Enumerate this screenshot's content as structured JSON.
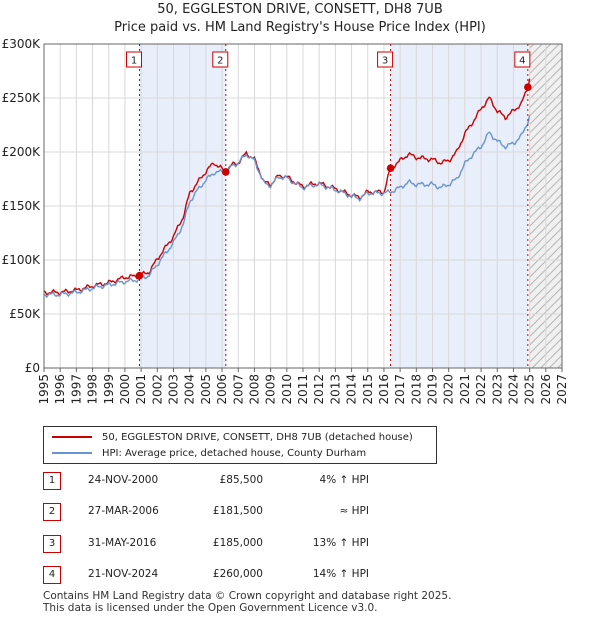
{
  "title": "50, EGGLESTON DRIVE, CONSETT, DH8 7UB",
  "subtitle": "Price paid vs. HM Land Registry's House Price Index (HPI)",
  "colors": {
    "property": "#cc0000",
    "hpi": "#6a94cf",
    "shade": "#e8eefa",
    "grid": "#d8d8d8"
  },
  "chart_data": {
    "type": "line",
    "xlim": [
      1995,
      2027
    ],
    "ylim": [
      0,
      300000
    ],
    "y_ticks": [
      0,
      50000,
      100000,
      150000,
      200000,
      250000,
      300000
    ],
    "y_tick_labels": [
      "£0",
      "£50K",
      "£100K",
      "£150K",
      "£200K",
      "£250K",
      "£300K"
    ],
    "x_ticks": [
      1995,
      1996,
      1997,
      1998,
      1999,
      2000,
      2001,
      2002,
      2003,
      2004,
      2005,
      2006,
      2007,
      2008,
      2009,
      2010,
      2011,
      2012,
      2013,
      2014,
      2015,
      2016,
      2017,
      2018,
      2019,
      2020,
      2021,
      2022,
      2023,
      2024,
      2025,
      2026,
      2027
    ],
    "x_tick_labels": [
      "1995",
      "1996",
      "1997",
      "1998",
      "1999",
      "2000",
      "2001",
      "2002",
      "2003",
      "2004",
      "2005",
      "2006",
      "2007",
      "2008",
      "2009",
      "2010",
      "2011",
      "2012",
      "2013",
      "2014",
      "2015",
      "2016",
      "2017",
      "2018",
      "2019",
      "2020",
      "2021",
      "2022",
      "2023",
      "2024",
      "2025",
      "2026",
      "2027"
    ],
    "shaded_ranges": [
      [
        2000.9,
        2006.23
      ],
      [
        2016.41,
        2024.89
      ]
    ],
    "future_hatch_from": 2025.0,
    "series": [
      {
        "name": "50, EGGLESTON DRIVE, CONSETT, DH8 7UB (detached house)",
        "color": "#cc0000",
        "x": [
          1995,
          1996,
          1997,
          1998,
          1999,
          2000,
          2000.9,
          2001.5,
          2002,
          2003,
          2003.6,
          2004,
          2004.5,
          2005,
          2005.5,
          2006.23,
          2006.6,
          2007,
          2007.5,
          2008,
          2008.6,
          2009,
          2009.5,
          2010,
          2010.5,
          2011,
          2011.5,
          2012,
          2013,
          2014,
          2014.5,
          2015,
          2016,
          2016.41,
          2017,
          2017.5,
          2018,
          2019,
          2019.5,
          2020,
          2020.5,
          2021,
          2021.5,
          2022,
          2022.5,
          2023,
          2023.5,
          2024,
          2024.5,
          2024.89,
          2025
        ],
        "y": [
          70000,
          70000,
          72000,
          76000,
          79000,
          84000,
          85500,
          89000,
          101000,
          122000,
          140000,
          162000,
          172000,
          182000,
          190000,
          181500,
          188000,
          190000,
          199000,
          193000,
          172000,
          170000,
          178000,
          177000,
          172000,
          168000,
          170000,
          171000,
          166000,
          160000,
          158000,
          163000,
          163000,
          185000,
          192000,
          198000,
          195000,
          193000,
          190000,
          192000,
          200000,
          217000,
          228000,
          240000,
          250000,
          238000,
          232000,
          238000,
          245000,
          260000,
          268000
        ]
      },
      {
        "name": "HPI: Average price, detached house, County Durham",
        "color": "#6a94cf",
        "x": [
          1995,
          1996,
          1997,
          1998,
          1999,
          2000,
          2000.9,
          2001.5,
          2002,
          2003,
          2003.6,
          2004,
          2004.5,
          2005,
          2005.5,
          2006.23,
          2006.6,
          2007,
          2007.5,
          2008,
          2008.6,
          2009,
          2009.5,
          2010,
          2010.5,
          2011,
          2011.5,
          2012,
          2013,
          2014,
          2014.5,
          2015,
          2016,
          2016.41,
          2017,
          2017.5,
          2018,
          2019,
          2019.5,
          2020,
          2020.5,
          2021,
          2021.5,
          2022,
          2022.5,
          2023,
          2023.5,
          2024,
          2024.5,
          2024.89,
          2025
        ],
        "y": [
          68000,
          68000,
          70000,
          74000,
          77000,
          80000,
          82000,
          86000,
          96000,
          116000,
          133000,
          154000,
          165000,
          174000,
          181000,
          182000,
          187000,
          190000,
          198000,
          192000,
          171000,
          169000,
          177000,
          176000,
          171000,
          167000,
          169000,
          170000,
          165000,
          159000,
          157000,
          162000,
          162000,
          163000,
          167000,
          172000,
          170000,
          170000,
          167000,
          170000,
          175000,
          189000,
          198000,
          205000,
          218000,
          210000,
          205000,
          208000,
          215000,
          228000,
          234000
        ]
      }
    ],
    "sales": [
      {
        "label": "1",
        "x": 2000.9,
        "y": 85500
      },
      {
        "label": "2",
        "x": 2006.23,
        "y": 181500
      },
      {
        "label": "3",
        "x": 2016.41,
        "y": 185000
      },
      {
        "label": "4",
        "x": 2024.89,
        "y": 260000
      }
    ]
  },
  "legend": {
    "property": "50, EGGLESTON DRIVE, CONSETT, DH8 7UB (detached house)",
    "hpi": "HPI: Average price, detached house, County Durham"
  },
  "transactions": [
    {
      "num": "1",
      "date": "24-NOV-2000",
      "price": "£85,500",
      "hpi": "4% ↑ HPI"
    },
    {
      "num": "2",
      "date": "27-MAR-2006",
      "price": "£181,500",
      "hpi": "≈ HPI"
    },
    {
      "num": "3",
      "date": "31-MAY-2016",
      "price": "£185,000",
      "hpi": "13% ↑ HPI"
    },
    {
      "num": "4",
      "date": "21-NOV-2024",
      "price": "£260,000",
      "hpi": "14% ↑ HPI"
    }
  ],
  "footer": {
    "line1": "Contains HM Land Registry data © Crown copyright and database right 2025.",
    "line2": "This data is licensed under the Open Government Licence v3.0."
  }
}
